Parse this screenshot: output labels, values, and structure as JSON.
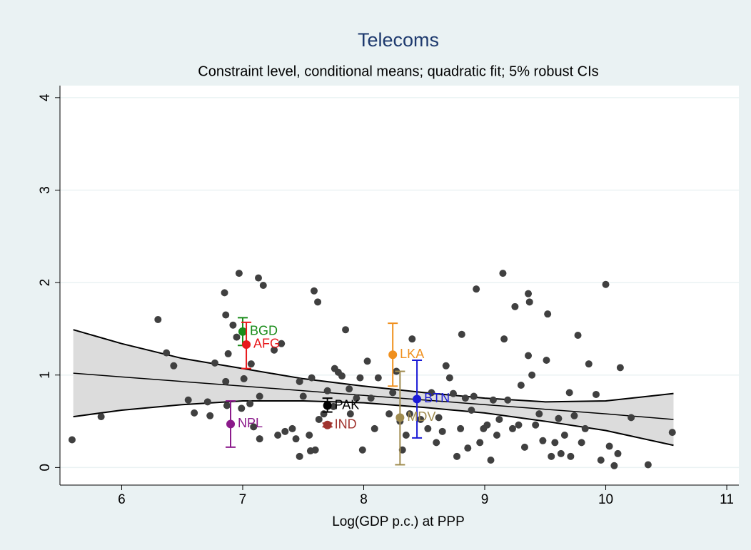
{
  "chart_data": {
    "type": "scatter",
    "title": "Telecoms",
    "subtitle": "Constraint level, conditional means; quadratic fit; 5% robust CIs",
    "x_label": "Log(GDP p.c.) at PPP",
    "xlim": [
      5.49,
      11.1
    ],
    "ylim": [
      -0.19,
      4.13
    ],
    "xticks": [
      6,
      7,
      8,
      9,
      10,
      11
    ],
    "yticks": [
      0,
      1,
      2,
      3,
      4
    ],
    "grid": true,
    "points": {
      "color": "#404040",
      "x": [
        5.59,
        5.83,
        6.3,
        6.37,
        6.43,
        6.55,
        6.6,
        6.71,
        6.73,
        6.77,
        6.85,
        6.86,
        6.86,
        6.87,
        6.88,
        6.92,
        6.95,
        6.97,
        6.99,
        7.01,
        7.06,
        7.07,
        7.09,
        7.13,
        7.14,
        7.17,
        7.14,
        7.26,
        7.32,
        7.29,
        7.35,
        7.41,
        7.47,
        7.44,
        7.5,
        7.47,
        7.55,
        7.59,
        7.62,
        7.56,
        7.57,
        7.6,
        7.63,
        7.67,
        7.7,
        7.75,
        7.76,
        7.79,
        7.82,
        7.85,
        7.88,
        7.89,
        7.94,
        7.97,
        7.99,
        8.03,
        8.06,
        8.09,
        8.12,
        8.21,
        8.24,
        8.27,
        8.3,
        8.32,
        8.35,
        8.38,
        8.4,
        8.47,
        8.53,
        8.56,
        8.6,
        8.62,
        8.65,
        8.68,
        8.71,
        8.74,
        8.77,
        8.8,
        8.81,
        8.84,
        8.86,
        8.89,
        8.91,
        8.93,
        8.96,
        8.99,
        9.02,
        9.05,
        9.07,
        9.1,
        9.12,
        9.15,
        9.16,
        9.19,
        9.23,
        9.25,
        9.28,
        9.3,
        9.33,
        9.36,
        9.36,
        9.37,
        9.39,
        9.42,
        9.45,
        9.48,
        9.51,
        9.52,
        9.55,
        9.58,
        9.61,
        9.63,
        9.66,
        9.7,
        9.71,
        9.74,
        9.77,
        9.8,
        9.83,
        9.86,
        9.92,
        9.96,
        10.0,
        10.03,
        10.07,
        10.1,
        10.12,
        10.21,
        10.35,
        10.55
      ],
      "values": [
        0.3,
        0.55,
        1.6,
        1.24,
        1.1,
        0.73,
        0.59,
        0.71,
        0.56,
        1.13,
        1.89,
        1.65,
        0.93,
        0.67,
        1.23,
        1.54,
        1.41,
        2.1,
        0.64,
        0.96,
        0.69,
        1.12,
        0.44,
        2.05,
        0.77,
        1.97,
        0.31,
        1.27,
        1.34,
        0.35,
        0.39,
        0.42,
        0.93,
        0.31,
        0.77,
        0.12,
        0.35,
        1.91,
        1.79,
        0.18,
        0.97,
        0.19,
        0.52,
        0.58,
        0.83,
        0.66,
        1.07,
        1.03,
        0.99,
        1.49,
        0.85,
        0.58,
        0.75,
        0.97,
        0.19,
        1.15,
        0.75,
        0.42,
        0.97,
        0.58,
        0.81,
        1.04,
        0.5,
        0.19,
        0.35,
        0.58,
        1.39,
        0.52,
        0.42,
        0.81,
        0.27,
        0.54,
        0.39,
        1.1,
        0.97,
        0.8,
        0.12,
        0.42,
        1.44,
        0.75,
        0.21,
        0.62,
        0.77,
        1.93,
        0.27,
        0.42,
        0.46,
        0.08,
        0.73,
        0.35,
        0.52,
        2.1,
        1.39,
        0.73,
        0.42,
        1.74,
        0.46,
        0.89,
        0.22,
        1.21,
        1.88,
        1.79,
        1.0,
        0.46,
        0.58,
        0.29,
        1.16,
        1.66,
        0.12,
        0.27,
        0.53,
        0.15,
        0.35,
        0.81,
        0.12,
        0.56,
        1.43,
        0.27,
        0.42,
        1.12,
        0.79,
        0.08,
        1.98,
        0.23,
        0.02,
        0.15,
        1.08,
        0.54,
        0.03,
        0.38
      ]
    },
    "fit": {
      "x": [
        5.6,
        6,
        6.5,
        7,
        7.5,
        8,
        8.5,
        9,
        9.5,
        10,
        10.56
      ],
      "values": [
        1.02,
        0.98,
        0.93,
        0.88,
        0.83,
        0.78,
        0.73,
        0.68,
        0.63,
        0.58,
        0.52
      ],
      "ci_high": [
        1.49,
        1.34,
        1.18,
        1.07,
        0.96,
        0.88,
        0.81,
        0.75,
        0.71,
        0.72,
        0.8
      ],
      "ci_low": [
        0.55,
        0.62,
        0.68,
        0.72,
        0.72,
        0.7,
        0.65,
        0.59,
        0.5,
        0.4,
        0.24
      ]
    },
    "series": [
      {
        "name": "BGD",
        "color": "#1a8c1a",
        "x": 7.0,
        "value": 1.47,
        "ci": [
          1.32,
          1.62
        ]
      },
      {
        "name": "AFG",
        "color": "#e8191c",
        "x": 7.03,
        "value": 1.33,
        "ci": [
          1.07,
          1.57
        ]
      },
      {
        "name": "NPL",
        "color": "#8b1a8b",
        "x": 6.9,
        "value": 0.47,
        "ci": [
          0.22,
          0.72
        ]
      },
      {
        "name": "PAK",
        "color": "#000000",
        "x": 7.7,
        "value": 0.67,
        "ci": [
          0.6,
          0.75
        ]
      },
      {
        "name": "IND",
        "color": "#a0332e",
        "x": 7.7,
        "value": 0.46,
        "ci": [
          0.44,
          0.48
        ]
      },
      {
        "name": "LKA",
        "color": "#f0901e",
        "x": 8.24,
        "value": 1.22,
        "ci": [
          0.88,
          1.56
        ]
      },
      {
        "name": "BTN",
        "color": "#1a1ad6",
        "x": 8.44,
        "value": 0.74,
        "ci": [
          0.32,
          1.16
        ]
      },
      {
        "name": "MDV",
        "color": "#a08c50",
        "x": 8.3,
        "value": 0.54,
        "ci": [
          0.03,
          1.04
        ]
      }
    ]
  }
}
